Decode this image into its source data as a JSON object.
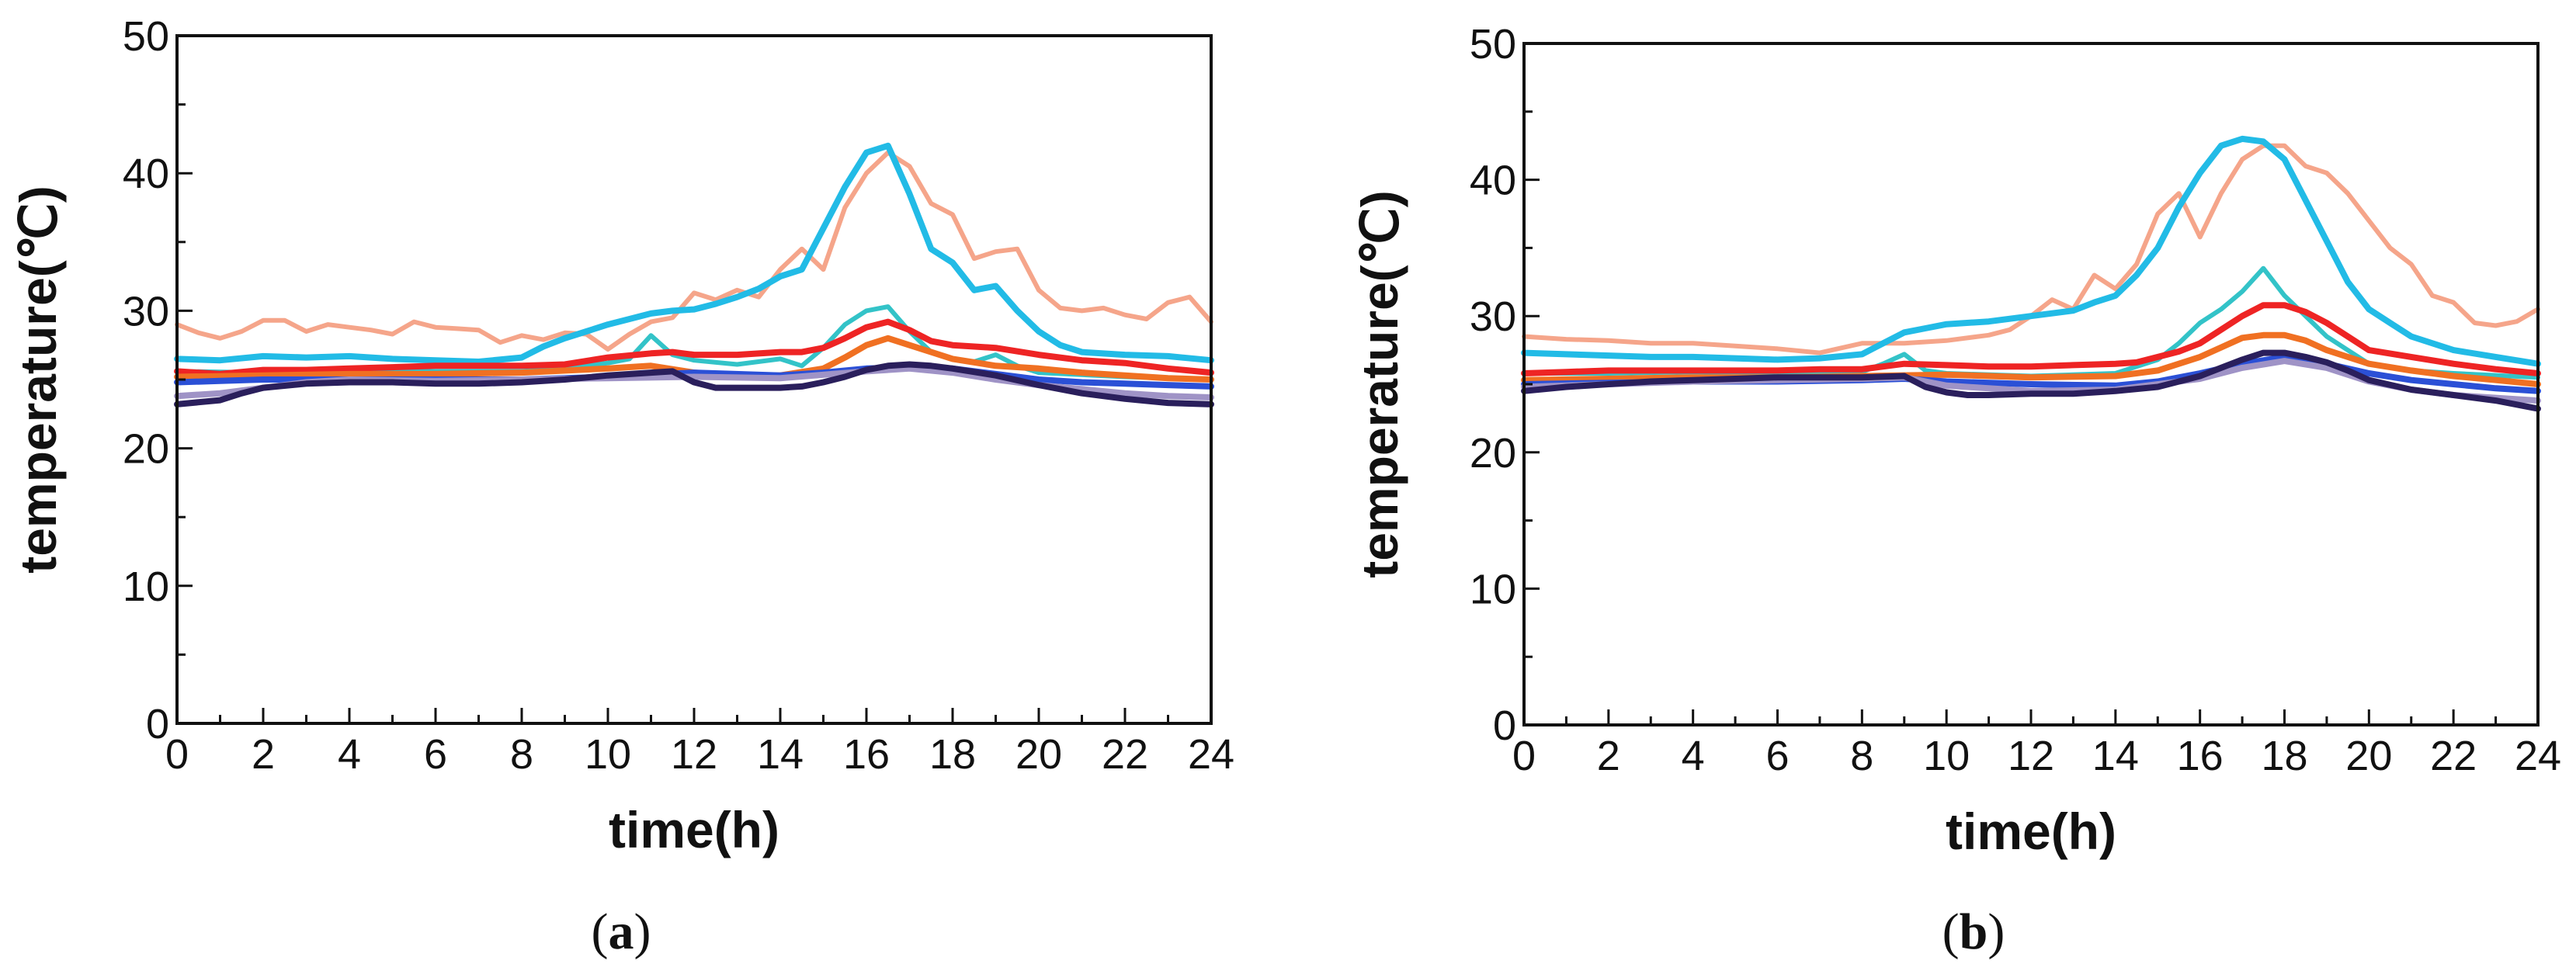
{
  "chart_data": [
    {
      "type": "line",
      "panel_label": "(a)",
      "panel_open": "(",
      "panel_letter": "a",
      "panel_close": ")",
      "xlabel": "time(h)",
      "ylabel": "temperature(℃)",
      "xlim": [
        0,
        24
      ],
      "ylim": [
        0,
        50
      ],
      "xticks": [
        0,
        2,
        4,
        6,
        8,
        10,
        12,
        14,
        16,
        18,
        20,
        22,
        24
      ],
      "yticks": [
        0,
        10,
        20,
        30,
        40,
        50
      ],
      "grid": false,
      "series": [
        {
          "name": "salmon",
          "color": "#f5a58a",
          "x": [
            0,
            0.5,
            1,
            1.5,
            2,
            2.5,
            3,
            3.5,
            4,
            4.5,
            5,
            5.5,
            6,
            6.5,
            7,
            7.5,
            8,
            8.5,
            9,
            9.5,
            10,
            10.5,
            11,
            11.5,
            12,
            12.5,
            13,
            13.5,
            14,
            14.5,
            15,
            15.5,
            16,
            16.5,
            17,
            17.5,
            18,
            18.5,
            19,
            19.5,
            20,
            20.5,
            21,
            21.5,
            22,
            22.5,
            23,
            23.5,
            24
          ],
          "values": [
            29,
            28.4,
            28,
            28.5,
            29.3,
            29.3,
            28.5,
            29,
            28.8,
            28.6,
            28.3,
            29.2,
            28.8,
            28.7,
            28.6,
            27.7,
            28.2,
            27.9,
            28.4,
            28.3,
            27.2,
            28.3,
            29.2,
            29.5,
            31.3,
            30.8,
            31.5,
            31,
            33,
            34.5,
            33,
            37.5,
            40,
            41.5,
            40.5,
            37.8,
            37,
            33.8,
            34.3,
            34.5,
            31.5,
            30.2,
            30,
            30.2,
            29.7,
            29.4,
            30.6,
            31,
            29.2
          ]
        },
        {
          "name": "sky-blue",
          "color": "#22bbe6",
          "x": [
            0,
            1,
            2,
            3,
            4,
            5,
            6,
            7,
            8,
            8.5,
            9,
            9.5,
            10,
            10.5,
            11,
            11.5,
            12,
            12.5,
            13,
            13.5,
            14,
            14.5,
            15,
            15.5,
            16,
            16.5,
            17,
            17.5,
            18,
            18.5,
            19,
            19.5,
            20,
            20.5,
            21,
            22,
            23,
            24
          ],
          "values": [
            26.5,
            26.4,
            26.7,
            26.6,
            26.7,
            26.5,
            26.4,
            26.3,
            26.6,
            27.4,
            28,
            28.5,
            29,
            29.4,
            29.8,
            30,
            30.1,
            30.5,
            31,
            31.6,
            32.5,
            33,
            36,
            39,
            41.5,
            42,
            38.5,
            34.5,
            33.5,
            31.5,
            31.8,
            30,
            28.5,
            27.5,
            27,
            26.8,
            26.7,
            26.4
          ]
        },
        {
          "name": "teal",
          "color": "#33c3c8",
          "x": [
            0,
            2,
            4,
            6,
            8,
            9,
            10,
            10.5,
            11,
            11.5,
            12,
            13,
            14,
            14.5,
            15,
            15.5,
            16,
            16.5,
            17,
            17.5,
            18,
            18.5,
            19,
            19.5,
            20,
            22,
            24
          ],
          "values": [
            25.6,
            25.5,
            25.6,
            25.6,
            25.6,
            25.8,
            26.2,
            26.5,
            28.2,
            26.8,
            26.4,
            26.1,
            26.5,
            26,
            27.3,
            29,
            30,
            30.3,
            28.5,
            27,
            26.5,
            26.3,
            26.8,
            26,
            25.5,
            25.2,
            25
          ]
        },
        {
          "name": "red",
          "color": "#ee2424",
          "x": [
            0,
            1,
            2,
            3,
            4,
            5,
            6,
            7,
            8,
            9,
            10,
            11,
            11.5,
            12,
            13,
            14,
            14.5,
            15,
            15.5,
            16,
            16.5,
            17,
            17.5,
            18,
            19,
            20,
            21,
            22,
            23,
            24
          ],
          "values": [
            25.6,
            25.4,
            25.7,
            25.7,
            25.8,
            25.9,
            26,
            26,
            26,
            26.1,
            26.6,
            26.9,
            27,
            26.8,
            26.8,
            27,
            27,
            27.3,
            28,
            28.8,
            29.2,
            28.6,
            27.8,
            27.5,
            27.3,
            26.8,
            26.4,
            26.2,
            25.8,
            25.5
          ]
        },
        {
          "name": "orange",
          "color": "#f07022",
          "x": [
            0,
            2,
            4,
            6,
            8,
            10,
            11,
            12,
            13,
            14,
            15,
            15.5,
            16,
            16.5,
            17,
            17.5,
            18,
            19,
            20,
            21,
            22,
            23,
            24
          ],
          "values": [
            25.2,
            25.3,
            25.4,
            25.4,
            25.5,
            25.8,
            26,
            25.5,
            25.3,
            25.3,
            25.8,
            26.6,
            27.5,
            28,
            27.5,
            27,
            26.5,
            26,
            25.8,
            25.5,
            25.3,
            25.1,
            25
          ]
        },
        {
          "name": "blue",
          "color": "#2b50d6",
          "x": [
            0,
            1,
            2,
            3,
            4,
            6,
            8,
            10,
            12,
            14,
            15,
            16,
            17,
            18,
            19,
            20,
            21,
            22,
            23,
            24
          ],
          "values": [
            24.8,
            24.9,
            25,
            25,
            25,
            25,
            25,
            25.2,
            25.5,
            25.3,
            25.5,
            25.8,
            25.9,
            25.8,
            25.4,
            25,
            24.8,
            24.7,
            24.6,
            24.5
          ]
        },
        {
          "name": "lavender",
          "color": "#9f93c6",
          "x": [
            0,
            1,
            2,
            3,
            4,
            6,
            8,
            10,
            12,
            14,
            16,
            17,
            18,
            19,
            20,
            21,
            22,
            23,
            24
          ],
          "values": [
            23.8,
            24,
            24.4,
            24.8,
            25,
            24.9,
            25,
            25.1,
            25.2,
            25.1,
            25.6,
            25.8,
            25.5,
            25,
            24.6,
            24.3,
            24,
            23.8,
            23.7
          ]
        },
        {
          "name": "dark-navy",
          "color": "#2a1f5c",
          "x": [
            0,
            1,
            1.5,
            2,
            3,
            4,
            5,
            6,
            7,
            8,
            9,
            10,
            11,
            11.5,
            12,
            12.5,
            13,
            14,
            14.5,
            15,
            15.5,
            16,
            16.5,
            17,
            17.5,
            18,
            19,
            20,
            21,
            22,
            23,
            24
          ],
          "values": [
            23.2,
            23.5,
            24,
            24.4,
            24.7,
            24.8,
            24.8,
            24.7,
            24.7,
            24.8,
            25,
            25.3,
            25.5,
            25.6,
            24.8,
            24.4,
            24.4,
            24.4,
            24.5,
            24.8,
            25.2,
            25.7,
            26,
            26.1,
            26,
            25.8,
            25.3,
            24.6,
            24,
            23.6,
            23.3,
            23.2
          ]
        }
      ]
    },
    {
      "type": "line",
      "panel_label": "(b)",
      "panel_open": "(",
      "panel_letter": "b",
      "panel_close": ")",
      "xlabel": "time(h)",
      "ylabel": "temperature(℃)",
      "xlim": [
        0,
        24
      ],
      "ylim": [
        0,
        50
      ],
      "xticks": [
        0,
        2,
        4,
        6,
        8,
        10,
        12,
        14,
        16,
        18,
        20,
        22,
        24
      ],
      "yticks": [
        0,
        10,
        20,
        30,
        40,
        50
      ],
      "grid": false,
      "series": [
        {
          "name": "salmon",
          "color": "#f5a58a",
          "x": [
            0,
            1,
            2,
            3,
            4,
            5,
            6,
            7,
            8,
            9,
            10,
            11,
            11.5,
            12,
            12.5,
            13,
            13.5,
            14,
            14.5,
            15,
            15.5,
            16,
            16.5,
            17,
            17.5,
            18,
            18.5,
            19,
            19.5,
            20,
            20.5,
            21,
            21.5,
            22,
            22.5,
            23,
            23.5,
            24
          ],
          "values": [
            28.5,
            28.3,
            28.2,
            28,
            28,
            27.8,
            27.6,
            27.3,
            28,
            28,
            28.2,
            28.6,
            29,
            30,
            31.2,
            30.5,
            33,
            32,
            33.8,
            37.5,
            39,
            35.8,
            39,
            41.5,
            42.5,
            42.5,
            41,
            40.5,
            39,
            37,
            35,
            33.8,
            31.5,
            31,
            29.5,
            29.3,
            29.6,
            30.5
          ]
        },
        {
          "name": "sky-blue",
          "color": "#22bbe6",
          "x": [
            0,
            1,
            2,
            3,
            4,
            5,
            6,
            7,
            8,
            8.5,
            9,
            9.5,
            10,
            11,
            11.5,
            12,
            12.5,
            13,
            13.5,
            14,
            14.5,
            15,
            15.5,
            16,
            16.5,
            17,
            17.5,
            18,
            18.5,
            19,
            19.5,
            20,
            20.5,
            21,
            22,
            23,
            24
          ],
          "values": [
            27.3,
            27.2,
            27.1,
            27,
            27,
            26.9,
            26.8,
            26.9,
            27.2,
            28,
            28.8,
            29.1,
            29.4,
            29.6,
            29.8,
            30,
            30.2,
            30.4,
            31,
            31.5,
            33,
            35,
            38,
            40.5,
            42.5,
            43,
            42.8,
            41.5,
            38.5,
            35.5,
            32.5,
            30.5,
            29.5,
            28.5,
            27.5,
            27,
            26.5
          ]
        },
        {
          "name": "teal",
          "color": "#33c3c8",
          "x": [
            0,
            2,
            4,
            6,
            8,
            8.5,
            9,
            9.5,
            10,
            12,
            14,
            15,
            15.5,
            16,
            16.5,
            17,
            17.5,
            18,
            18.5,
            19,
            19.5,
            20,
            21,
            22,
            24
          ],
          "values": [
            25.8,
            25.8,
            25.9,
            25.8,
            25.9,
            26.5,
            27.2,
            26,
            25.8,
            25.6,
            25.8,
            26.8,
            28,
            29.5,
            30.5,
            31.8,
            33.5,
            31.5,
            30,
            28.5,
            27.5,
            26.5,
            26,
            25.8,
            25.5
          ]
        },
        {
          "name": "red",
          "color": "#ee2424",
          "x": [
            0,
            1,
            2,
            3,
            4,
            5,
            6,
            7,
            8,
            9,
            10,
            11,
            12,
            13,
            14,
            14.5,
            15,
            15.5,
            16,
            16.5,
            17,
            17.5,
            18,
            18.5,
            19,
            19.5,
            20,
            21,
            22,
            23,
            24
          ],
          "values": [
            25.8,
            25.9,
            26,
            26,
            26,
            26,
            26,
            26.1,
            26.1,
            26.5,
            26.4,
            26.3,
            26.3,
            26.4,
            26.5,
            26.6,
            27,
            27.4,
            28,
            29,
            30,
            30.8,
            30.8,
            30.3,
            29.5,
            28.5,
            27.5,
            27,
            26.5,
            26.1,
            25.8
          ]
        },
        {
          "name": "orange",
          "color": "#f07022",
          "x": [
            0,
            2,
            4,
            6,
            8,
            10,
            12,
            14,
            15,
            16,
            16.5,
            17,
            17.5,
            18,
            18.5,
            19,
            20,
            21,
            22,
            23,
            24
          ],
          "values": [
            25.3,
            25.4,
            25.5,
            25.5,
            25.6,
            25.7,
            25.5,
            25.6,
            26,
            27,
            27.7,
            28.4,
            28.6,
            28.6,
            28.2,
            27.5,
            26.5,
            26,
            25.6,
            25.3,
            25
          ]
        },
        {
          "name": "blue",
          "color": "#2b50d6",
          "x": [
            0,
            2,
            4,
            6,
            8,
            9,
            10,
            12,
            14,
            15,
            16,
            17,
            18,
            19,
            20,
            21,
            22,
            23,
            24
          ],
          "values": [
            25,
            25.1,
            25.2,
            25.2,
            25.3,
            25.4,
            25.2,
            25,
            24.9,
            25.2,
            25.8,
            26.5,
            27,
            26.5,
            25.8,
            25.3,
            25,
            24.7,
            24.5
          ]
        },
        {
          "name": "lavender",
          "color": "#9f93c6",
          "x": [
            0,
            2,
            4,
            6,
            8,
            9,
            10,
            12,
            14,
            16,
            17,
            18,
            19,
            20,
            21,
            22,
            23,
            24
          ],
          "values": [
            24.8,
            25,
            25.2,
            25.3,
            25.4,
            25.5,
            24.9,
            24.5,
            24.6,
            25.4,
            26.2,
            26.7,
            26.2,
            25.2,
            24.6,
            24.2,
            24,
            23.8
          ]
        },
        {
          "name": "dark-navy",
          "color": "#2a1f5c",
          "x": [
            0,
            1,
            2,
            3,
            4,
            5,
            6,
            7,
            8,
            9,
            9.5,
            10,
            10.5,
            11,
            12,
            13,
            14,
            15,
            15.5,
            16,
            16.5,
            17,
            17.5,
            18,
            18.5,
            19,
            19.5,
            20,
            21,
            22,
            23,
            24
          ],
          "values": [
            24.5,
            24.8,
            25,
            25.2,
            25.3,
            25.4,
            25.5,
            25.5,
            25.5,
            25.6,
            24.8,
            24.4,
            24.2,
            24.2,
            24.3,
            24.3,
            24.5,
            24.8,
            25.2,
            25.6,
            26.2,
            26.8,
            27.3,
            27.3,
            27,
            26.6,
            26,
            25.3,
            24.6,
            24.2,
            23.8,
            23.2
          ]
        }
      ]
    }
  ]
}
